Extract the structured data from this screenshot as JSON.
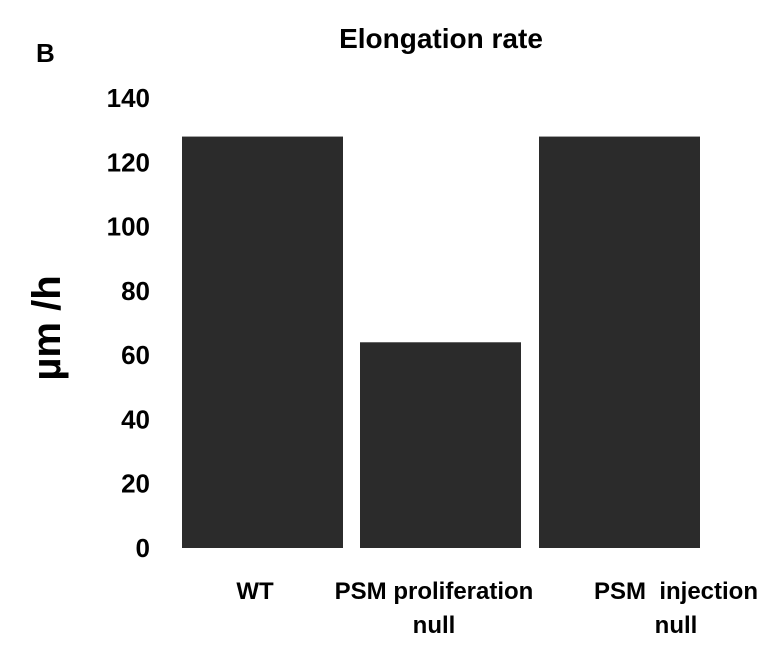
{
  "panel_letter": "B",
  "chart_data": {
    "type": "bar",
    "title": "Elongation rate",
    "xlabel": "",
    "ylabel": "µm /h",
    "ylim": [
      0,
      140
    ],
    "yticks": [
      0,
      20,
      40,
      60,
      80,
      100,
      120,
      140
    ],
    "categories": [
      [
        "WT"
      ],
      [
        "PSM proliferation",
        "null"
      ],
      [
        "PSM  injection",
        "null"
      ]
    ],
    "values": [
      128,
      64,
      128
    ],
    "bar_color": "#2b2b2b",
    "grid": false,
    "legend": "none"
  }
}
